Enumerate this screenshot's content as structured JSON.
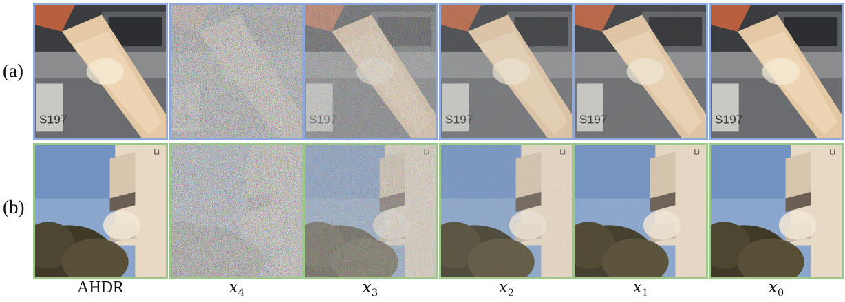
{
  "row_labels": [
    "(a)",
    "(b)"
  ],
  "columns": [
    {
      "label": "AHDR",
      "math": false
    },
    {
      "base": "x",
      "sub": "4",
      "math": true
    },
    {
      "base": "x",
      "sub": "3",
      "math": true
    },
    {
      "base": "x",
      "sub": "2",
      "math": true
    },
    {
      "base": "x",
      "sub": "1",
      "math": true
    },
    {
      "base": "x",
      "sub": "0",
      "math": true
    }
  ],
  "colors": {
    "row_a_border": "#8fa8dc",
    "row_b_border": "#9cc98a"
  },
  "panel_text": {
    "plate_text": "S197",
    "building_text": "Li"
  },
  "noise_levels": {
    "row_a": [
      0.0,
      0.9,
      0.5,
      0.2,
      0.1,
      0.0
    ],
    "row_b": [
      0.0,
      0.9,
      0.5,
      0.15,
      0.05,
      0.0
    ]
  }
}
